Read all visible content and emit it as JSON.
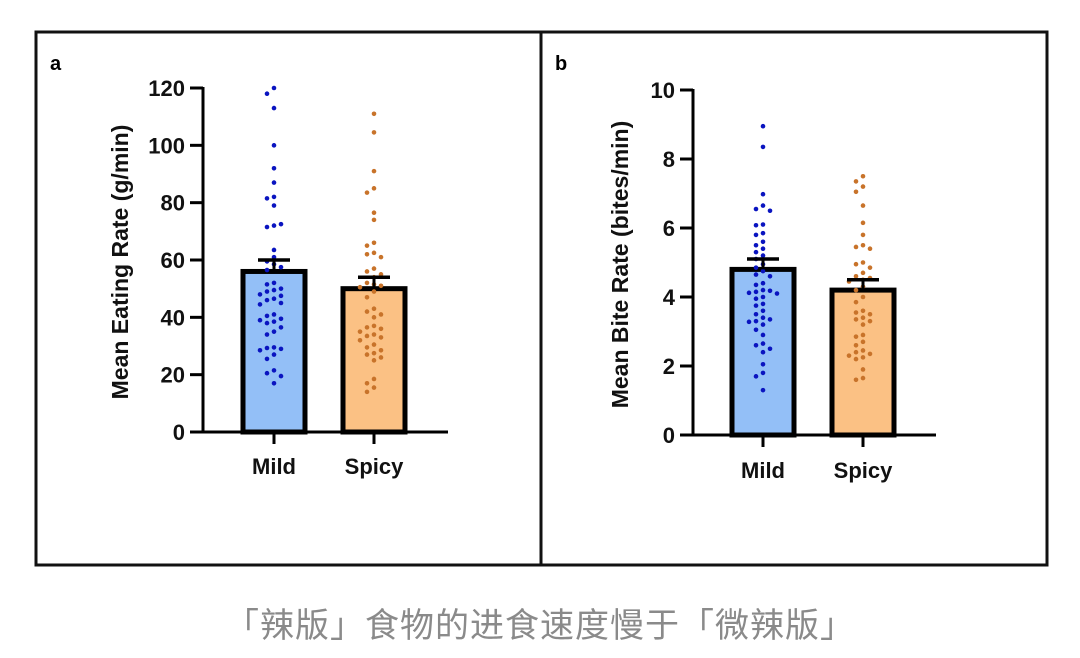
{
  "caption": "「辣版」食物的进食速度慢于「微辣版」",
  "colors": {
    "mild_fill": "#93bff7",
    "spicy_fill": "#fbc184",
    "mild_dot": "#0a14c0",
    "spicy_dot": "#c8732a",
    "frame": "#111111"
  },
  "chart_data": [
    {
      "panel": "a",
      "type": "bar",
      "title": "",
      "xlabel": "",
      "ylabel": "Mean Eating Rate (g/min)",
      "ylim": [
        0,
        120
      ],
      "yticks": [
        0,
        20,
        40,
        60,
        80,
        100,
        120
      ],
      "categories": [
        "Mild",
        "Spicy"
      ],
      "values": [
        56,
        50
      ],
      "error_upper": [
        60,
        54
      ],
      "grid": false,
      "series": [
        {
          "name": "Mild",
          "mean": 56,
          "sem_upper": 60,
          "points": [
            120,
            118,
            113,
            100,
            92,
            87,
            82,
            81.5,
            79,
            72,
            71.5,
            72.5,
            63.5,
            61,
            59.5,
            58.5,
            57.5,
            56.5,
            52,
            51.5,
            50,
            49.5,
            49,
            48,
            47.5,
            46.5,
            46,
            45,
            44.5,
            41,
            40.5,
            39.5,
            39,
            38.5,
            38,
            36.5,
            35,
            34,
            29.5,
            29.3,
            29,
            28.5,
            27,
            25.5,
            21.5,
            20.5,
            19.5,
            17
          ]
        },
        {
          "name": "Spicy",
          "mean": 50,
          "sem_upper": 54,
          "points": [
            111,
            104.5,
            91,
            85,
            83.5,
            76.5,
            74,
            66,
            65,
            62.5,
            62,
            61,
            57,
            56,
            55,
            54,
            52,
            51.5,
            51,
            50.5,
            49,
            47,
            43,
            42,
            41,
            40,
            37,
            36.5,
            36,
            35,
            34,
            33.5,
            33,
            32,
            30.5,
            29.5,
            28.5,
            27.5,
            27,
            26,
            25,
            18.5,
            17,
            15.5,
            14
          ]
        }
      ]
    },
    {
      "panel": "b",
      "type": "bar",
      "title": "",
      "xlabel": "",
      "ylabel": "Mean Bite Rate (bites/min)",
      "ylim": [
        0,
        10
      ],
      "yticks": [
        0,
        2,
        4,
        6,
        8,
        10
      ],
      "categories": [
        "Mild",
        "Spicy"
      ],
      "values": [
        4.8,
        4.2
      ],
      "error_upper": [
        5.1,
        4.5
      ],
      "grid": false,
      "series": [
        {
          "name": "Mild",
          "mean": 4.8,
          "sem_upper": 5.1,
          "points": [
            8.95,
            8.35,
            6.98,
            6.65,
            6.55,
            6.5,
            6.1,
            6.08,
            5.85,
            5.8,
            5.6,
            5.5,
            5.4,
            5.3,
            5.2,
            5.1,
            4.95,
            4.85,
            4.75,
            4.65,
            4.6,
            4.4,
            4.35,
            4.2,
            4.18,
            4.15,
            4.12,
            4.1,
            4.0,
            3.95,
            3.8,
            3.75,
            3.6,
            3.5,
            3.4,
            3.35,
            3.3,
            3.28,
            3.2,
            3.05,
            2.9,
            2.65,
            2.6,
            2.5,
            2.4,
            2.05,
            1.8,
            1.7,
            1.3
          ]
        },
        {
          "name": "Spicy",
          "mean": 4.2,
          "sem_upper": 4.5,
          "points": [
            7.5,
            7.35,
            7.2,
            7.05,
            6.65,
            6.15,
            5.8,
            5.5,
            5.45,
            5.4,
            5.0,
            4.95,
            4.85,
            4.7,
            4.6,
            4.55,
            4.5,
            4.45,
            4.3,
            4.2,
            4.0,
            3.85,
            3.6,
            3.55,
            3.5,
            3.4,
            3.35,
            3.3,
            3.2,
            2.9,
            2.85,
            2.7,
            2.6,
            2.45,
            2.4,
            2.35,
            2.3,
            2.25,
            2.2,
            1.9,
            1.65,
            1.6
          ]
        }
      ]
    }
  ]
}
